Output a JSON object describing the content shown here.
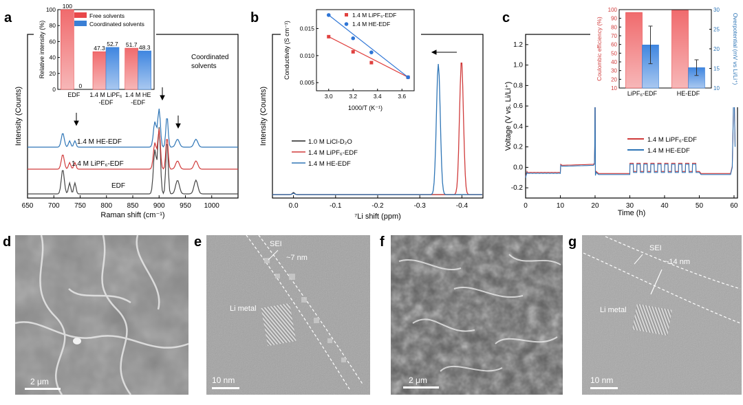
{
  "panels": {
    "a": "a",
    "b": "b",
    "c": "c",
    "d": "d",
    "e": "e",
    "f": "f",
    "g": "g"
  },
  "chart_data": [
    {
      "id": "a-main",
      "type": "line",
      "xlabel": "Raman shift (cm⁻¹)",
      "ylabel": "Intensity (Counts)",
      "xlim": [
        650,
        1050
      ],
      "x_ticks": [
        "650",
        "700",
        "750",
        "800",
        "850",
        "900",
        "950",
        "1000"
      ],
      "series": [
        {
          "name": "1.4 M HE-EDF",
          "color": "#2e75b6"
        },
        {
          "name": "1.4 M LiPF₆-EDF",
          "color": "#d03a3a"
        },
        {
          "name": "EDF",
          "color": "#444444"
        }
      ],
      "annotation": "Coordinated solvents"
    },
    {
      "id": "a-inset",
      "type": "bar",
      "ylabel": "Relative intensity (%)",
      "ylim": [
        0,
        100
      ],
      "y_ticks": [
        "0",
        "20",
        "40",
        "60",
        "80",
        "100"
      ],
      "categories": [
        "EDF",
        "1.4 M LiPF₆ -EDF",
        "1.4 M HE -EDF"
      ],
      "series": [
        {
          "name": "Free solvents",
          "values": [
            100,
            47.3,
            51.7
          ],
          "labels": [
            "100",
            "47.3",
            "51.7"
          ],
          "color": "#e8484a"
        },
        {
          "name": "Coordinated solvents",
          "values": [
            0,
            52.7,
            48.3
          ],
          "labels": [
            "0",
            "52.7",
            "48.3"
          ],
          "color": "#3a7fd5"
        }
      ]
    },
    {
      "id": "b-main",
      "type": "line",
      "xlabel": "⁷Li shift (ppm)",
      "ylabel": "Intensity (Counts)",
      "xlim": [
        0.05,
        -0.45
      ],
      "x_ticks": [
        "0.0",
        "-0.1",
        "-0.2",
        "-0.3",
        "-0.4"
      ],
      "series": [
        {
          "name": "1.0 M LiCl-D₂O",
          "color": "#222222"
        },
        {
          "name": "1.4 M LiPF₆-EDF",
          "color": "#d03a3a"
        },
        {
          "name": "1.4 M HE-EDF",
          "color": "#2e75b6"
        }
      ]
    },
    {
      "id": "b-inset",
      "type": "scatter",
      "xlabel": "1000/T (K⁻¹)",
      "ylabel": "Conductivity (S cm⁻¹)",
      "xlim": [
        2.9,
        3.7
      ],
      "ylim": [
        0.0035,
        0.0185
      ],
      "x_ticks": [
        "3.0",
        "3.2",
        "3.4",
        "3.6"
      ],
      "y_ticks": [
        "0.005",
        "0.010",
        "0.015"
      ],
      "series": [
        {
          "name": "1.4 M LiPF₆-EDF",
          "color": "#e0413f",
          "marker": "square",
          "x": [
            3.0,
            3.2,
            3.35,
            3.65
          ],
          "y": [
            0.0135,
            0.0107,
            0.0087,
            0.006
          ]
        },
        {
          "name": "1.4 M HE-EDF",
          "color": "#2e75d6",
          "marker": "circle",
          "x": [
            3.0,
            3.2,
            3.35,
            3.65
          ],
          "y": [
            0.0175,
            0.0132,
            0.0106,
            0.006
          ]
        }
      ]
    },
    {
      "id": "c-main",
      "type": "line",
      "xlabel": "Time (h)",
      "ylabel": "Voltage (V vs. Li/Li⁺)",
      "xlim": [
        0,
        61
      ],
      "ylim": [
        -0.3,
        1.3
      ],
      "x_ticks": [
        "0",
        "10",
        "20",
        "30",
        "40",
        "50",
        "60"
      ],
      "y_ticks": [
        "-0.2",
        "0.0",
        "0.2",
        "0.4",
        "0.6",
        "0.8",
        "1.0",
        "1.2"
      ],
      "series": [
        {
          "name": "1.4 M LiPF₆-EDF",
          "color": "#d03a3a"
        },
        {
          "name": "1.4 M HE-EDF",
          "color": "#2e75b6"
        }
      ]
    },
    {
      "id": "c-inset",
      "type": "bar",
      "ylabel": "Coulombic efficiency (%)",
      "y2label": "Overpotential (mV vs Li/Li⁺)",
      "ylim": [
        10,
        100
      ],
      "y2lim": [
        10,
        30
      ],
      "y_ticks": [
        "10",
        "20",
        "30",
        "40",
        "50",
        "60",
        "70",
        "80",
        "90",
        "100"
      ],
      "y2_ticks": [
        "10",
        "15",
        "20",
        "25",
        "30"
      ],
      "categories": [
        "LiPF₆-EDF",
        "HE-EDF"
      ],
      "series": [
        {
          "name": "Coulombic efficiency (%)",
          "axis": "left",
          "values": [
            96.8,
            99.2
          ],
          "color": "#e8484a"
        },
        {
          "name": "Overpotential (mV vs Li/Li⁺)",
          "axis": "right",
          "values": [
            21,
            15.2
          ],
          "error": [
            4.8,
            2.0
          ],
          "color": "#3a7fd5"
        }
      ]
    }
  ],
  "micrographs": {
    "d": {
      "scale": "2 μm"
    },
    "e": {
      "scale": "10 nm",
      "sei": "SEI",
      "thickness": "~7 nm",
      "metal": "Li metal"
    },
    "f": {
      "scale": "2 μm"
    },
    "g": {
      "scale": "10 nm",
      "sei": "SEI",
      "thickness": "~14 nm",
      "metal": "Li metal"
    }
  }
}
